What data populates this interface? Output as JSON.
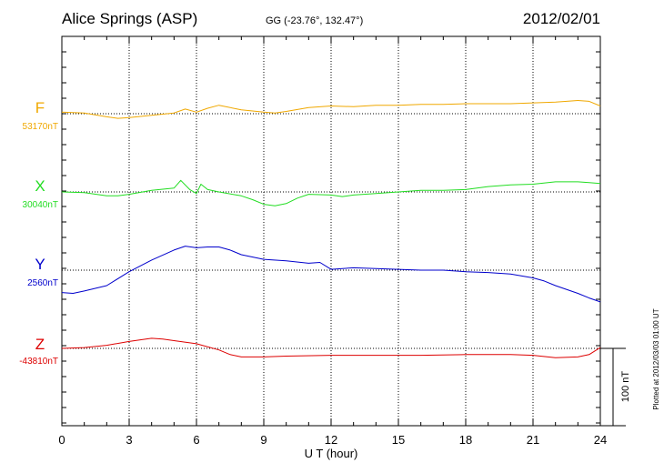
{
  "header": {
    "station": "Alice Springs (ASP)",
    "coords": "GG (-23.76°, 132.47°)",
    "date": "2012/02/01"
  },
  "footer": {
    "xlabel": "U T (hour)",
    "plotted_note": "Plotted at 2012/03/03 01:00 UT"
  },
  "scale_bar": {
    "label": "100 nT"
  },
  "colors": {
    "F": "#f0a800",
    "X": "#22dd22",
    "Y": "#0000cc",
    "Z": "#dd0000"
  },
  "chart_data": {
    "type": "line",
    "title": "Alice Springs (ASP)",
    "xlabel": "U T (hour)",
    "xlim": [
      0,
      24
    ],
    "x_ticks": [
      "0",
      "3",
      "6",
      "9",
      "12",
      "15",
      "18",
      "21",
      "24"
    ],
    "grid": true,
    "scale_nT_per_bar": 100,
    "series": [
      {
        "name": "F",
        "baseline_label": "53170nT",
        "baseline": 53170,
        "x": [
          0,
          1,
          2,
          2.5,
          3,
          4,
          5,
          5.5,
          6,
          6.5,
          7,
          8,
          9,
          9.5,
          10,
          11,
          12,
          13,
          14,
          15,
          16,
          17,
          18,
          19,
          20,
          21,
          22,
          23,
          23.5,
          24
        ],
        "values": [
          53172,
          53171,
          53166,
          53164,
          53165,
          53168,
          53171,
          53176,
          53172,
          53177,
          53181,
          53175,
          53172,
          53171,
          53173,
          53178,
          53180,
          53179,
          53181,
          53181,
          53182,
          53182,
          53183,
          53183,
          53183,
          53184,
          53185,
          53187,
          53186,
          53180
        ]
      },
      {
        "name": "X",
        "baseline_label": "30040nT",
        "baseline": 30040,
        "x": [
          0,
          1,
          2,
          2.5,
          3,
          4,
          5,
          5.3,
          5.7,
          6,
          6.2,
          6.5,
          7,
          8,
          8.5,
          9,
          9.5,
          10,
          10.5,
          11,
          12,
          12.5,
          13,
          14,
          15,
          16,
          17,
          18,
          19,
          20,
          21,
          22,
          23,
          23.5,
          24
        ],
        "values": [
          30040,
          30039,
          30035,
          30035,
          30037,
          30042,
          30045,
          30055,
          30043,
          30038,
          30050,
          30043,
          30040,
          30035,
          30030,
          30024,
          30022,
          30025,
          30032,
          30037,
          30036,
          30034,
          30036,
          30038,
          30040,
          30042,
          30042,
          30043,
          30047,
          30049,
          30050,
          30053,
          30053,
          30052,
          30051
        ]
      },
      {
        "name": "Y",
        "baseline_label": "2560nT",
        "baseline": 2560,
        "x": [
          0,
          0.5,
          1,
          2,
          3,
          4,
          5,
          5.5,
          6,
          6.5,
          7,
          7.5,
          8,
          9,
          10,
          11,
          11.5,
          12,
          13,
          14,
          15,
          16,
          17,
          18,
          19,
          20,
          21,
          21.5,
          22,
          23,
          23.5,
          24
        ],
        "values": [
          2531,
          2530,
          2533,
          2540,
          2558,
          2573,
          2586,
          2591,
          2589,
          2590,
          2590,
          2586,
          2580,
          2574,
          2572,
          2569,
          2570,
          2561,
          2563,
          2562,
          2561,
          2560,
          2560,
          2558,
          2557,
          2555,
          2550,
          2546,
          2540,
          2530,
          2524,
          2519
        ]
      },
      {
        "name": "Z",
        "baseline_label": "-43810nT",
        "baseline": -43810,
        "x": [
          0,
          1,
          2,
          3,
          3.5,
          4,
          4.5,
          5,
          6,
          7,
          7.5,
          8,
          9,
          10,
          12,
          14,
          16,
          18,
          20,
          21,
          22,
          23,
          23.5,
          24
        ],
        "values": [
          -43810,
          -43809,
          -43806,
          -43801,
          -43799,
          -43797,
          -43798,
          -43800,
          -43804,
          -43812,
          -43818,
          -43821,
          -43821,
          -43820,
          -43819,
          -43819,
          -43819,
          -43818,
          -43818,
          -43819,
          -43822,
          -43821,
          -43818,
          -43809
        ]
      }
    ]
  }
}
